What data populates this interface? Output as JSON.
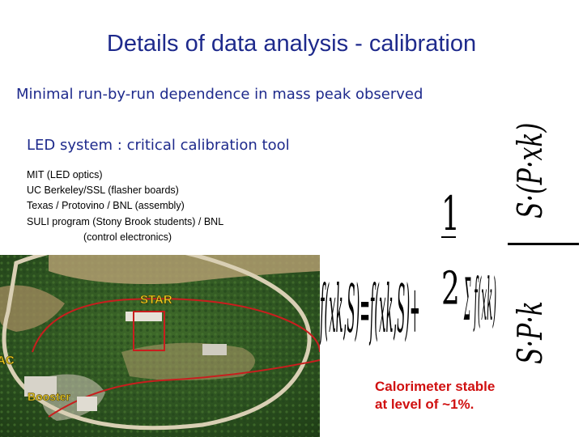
{
  "slide": {
    "title": "Details of data analysis - calibration",
    "subtitle": "Minimal run-by-run dependence in mass peak observed",
    "led_heading": "LED system : critical calibration tool",
    "credits": [
      "MIT (LED optics)",
      "UC Berkeley/SSL (flasher boards)",
      "Texas / Protovino / BNL (assembly)",
      "SULI program (Stony Brook students) / BNL",
      "(control electronics)"
    ],
    "note_lines": [
      "Calorimeter stable",
      "at level of ~1%."
    ]
  },
  "photo": {
    "labels": {
      "star": "STAR",
      "booster": "Booster",
      "ac": "AC"
    }
  },
  "formula": {
    "lhs": "f(xk,S)=f(xk,S)+",
    "frac_num": "1",
    "frac_den": "2",
    "sum_term": "Σ f(xk)",
    "right_num": "S·(P·xk)",
    "right_den": "S·P·k"
  },
  "colors": {
    "title": "#1e2a8c",
    "note": "#d01010"
  }
}
